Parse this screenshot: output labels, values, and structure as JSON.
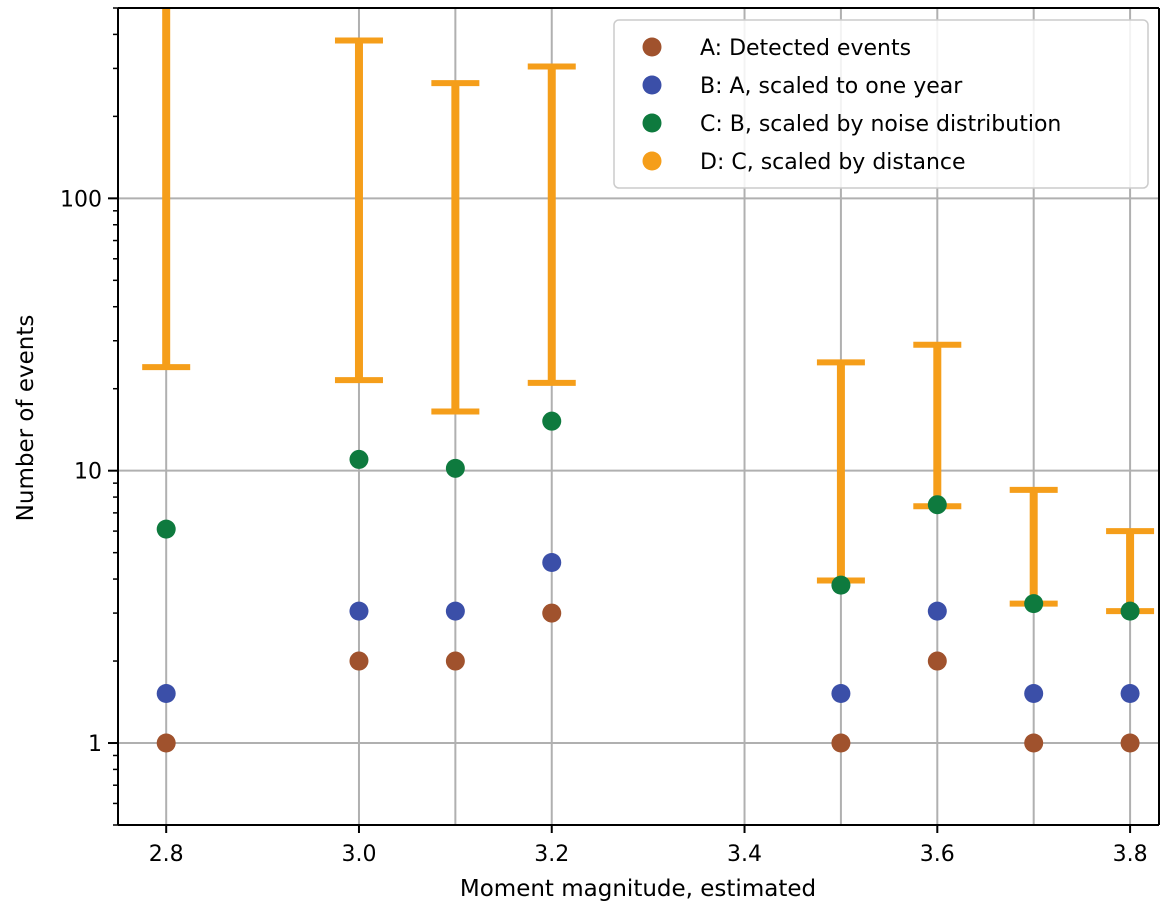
{
  "chart_data": {
    "type": "scatter",
    "title": "",
    "xlabel": "Moment magnitude, estimated",
    "ylabel": "Number of events",
    "xlim": [
      2.75,
      3.83
    ],
    "ylim": [
      0.5,
      500
    ],
    "yscale": "log",
    "grid": true,
    "legend_position": "top-right",
    "x_ticks": [
      {
        "value": 2.8,
        "label": "2.8"
      },
      {
        "value": 3.0,
        "label": "3.0"
      },
      {
        "value": 3.2,
        "label": "3.2"
      },
      {
        "value": 3.4,
        "label": "3.4"
      },
      {
        "value": 3.6,
        "label": "3.6"
      },
      {
        "value": 3.8,
        "label": "3.8"
      }
    ],
    "x_grid": [
      2.8,
      3.0,
      3.1,
      3.2,
      3.4,
      3.5,
      3.6,
      3.7,
      3.8
    ],
    "y_ticks": [
      {
        "value": 1,
        "label": "1"
      },
      {
        "value": 10,
        "label": "10"
      },
      {
        "value": 100,
        "label": "100"
      }
    ],
    "series": [
      {
        "name": "A: Detected events",
        "color": "#a0522d",
        "marker": "circle",
        "points": [
          {
            "x": 2.8,
            "y": 1
          },
          {
            "x": 3.0,
            "y": 2
          },
          {
            "x": 3.1,
            "y": 2
          },
          {
            "x": 3.2,
            "y": 3
          },
          {
            "x": 3.5,
            "y": 1
          },
          {
            "x": 3.6,
            "y": 2
          },
          {
            "x": 3.7,
            "y": 1
          },
          {
            "x": 3.8,
            "y": 1
          }
        ]
      },
      {
        "name": "B: A, scaled to one year",
        "color": "#3b4fa8",
        "marker": "circle",
        "points": [
          {
            "x": 2.8,
            "y": 1.52
          },
          {
            "x": 3.0,
            "y": 3.05
          },
          {
            "x": 3.1,
            "y": 3.05
          },
          {
            "x": 3.2,
            "y": 4.6
          },
          {
            "x": 3.5,
            "y": 1.52
          },
          {
            "x": 3.6,
            "y": 3.05
          },
          {
            "x": 3.7,
            "y": 1.52
          },
          {
            "x": 3.8,
            "y": 1.52
          }
        ]
      },
      {
        "name": "C: B, scaled by noise distribution",
        "color": "#0e7a3e",
        "marker": "circle",
        "points": [
          {
            "x": 2.8,
            "y": 6.1
          },
          {
            "x": 3.0,
            "y": 11
          },
          {
            "x": 3.1,
            "y": 10.2
          },
          {
            "x": 3.2,
            "y": 15.2
          },
          {
            "x": 3.5,
            "y": 3.8
          },
          {
            "x": 3.6,
            "y": 7.5
          },
          {
            "x": 3.7,
            "y": 3.25
          },
          {
            "x": 3.8,
            "y": 3.05
          }
        ]
      },
      {
        "name": "D: C, scaled by distance",
        "color": "#f59e1a",
        "marker": "errorbar",
        "ranges": [
          {
            "x": 2.8,
            "low": 24,
            "high": 700
          },
          {
            "x": 3.0,
            "low": 21.5,
            "high": 380
          },
          {
            "x": 3.1,
            "low": 16.5,
            "high": 265
          },
          {
            "x": 3.2,
            "low": 21,
            "high": 305
          },
          {
            "x": 3.5,
            "low": 3.95,
            "high": 25
          },
          {
            "x": 3.6,
            "low": 7.4,
            "high": 29
          },
          {
            "x": 3.7,
            "low": 3.25,
            "high": 8.5
          },
          {
            "x": 3.8,
            "low": 3.05,
            "high": 6
          }
        ]
      }
    ]
  }
}
